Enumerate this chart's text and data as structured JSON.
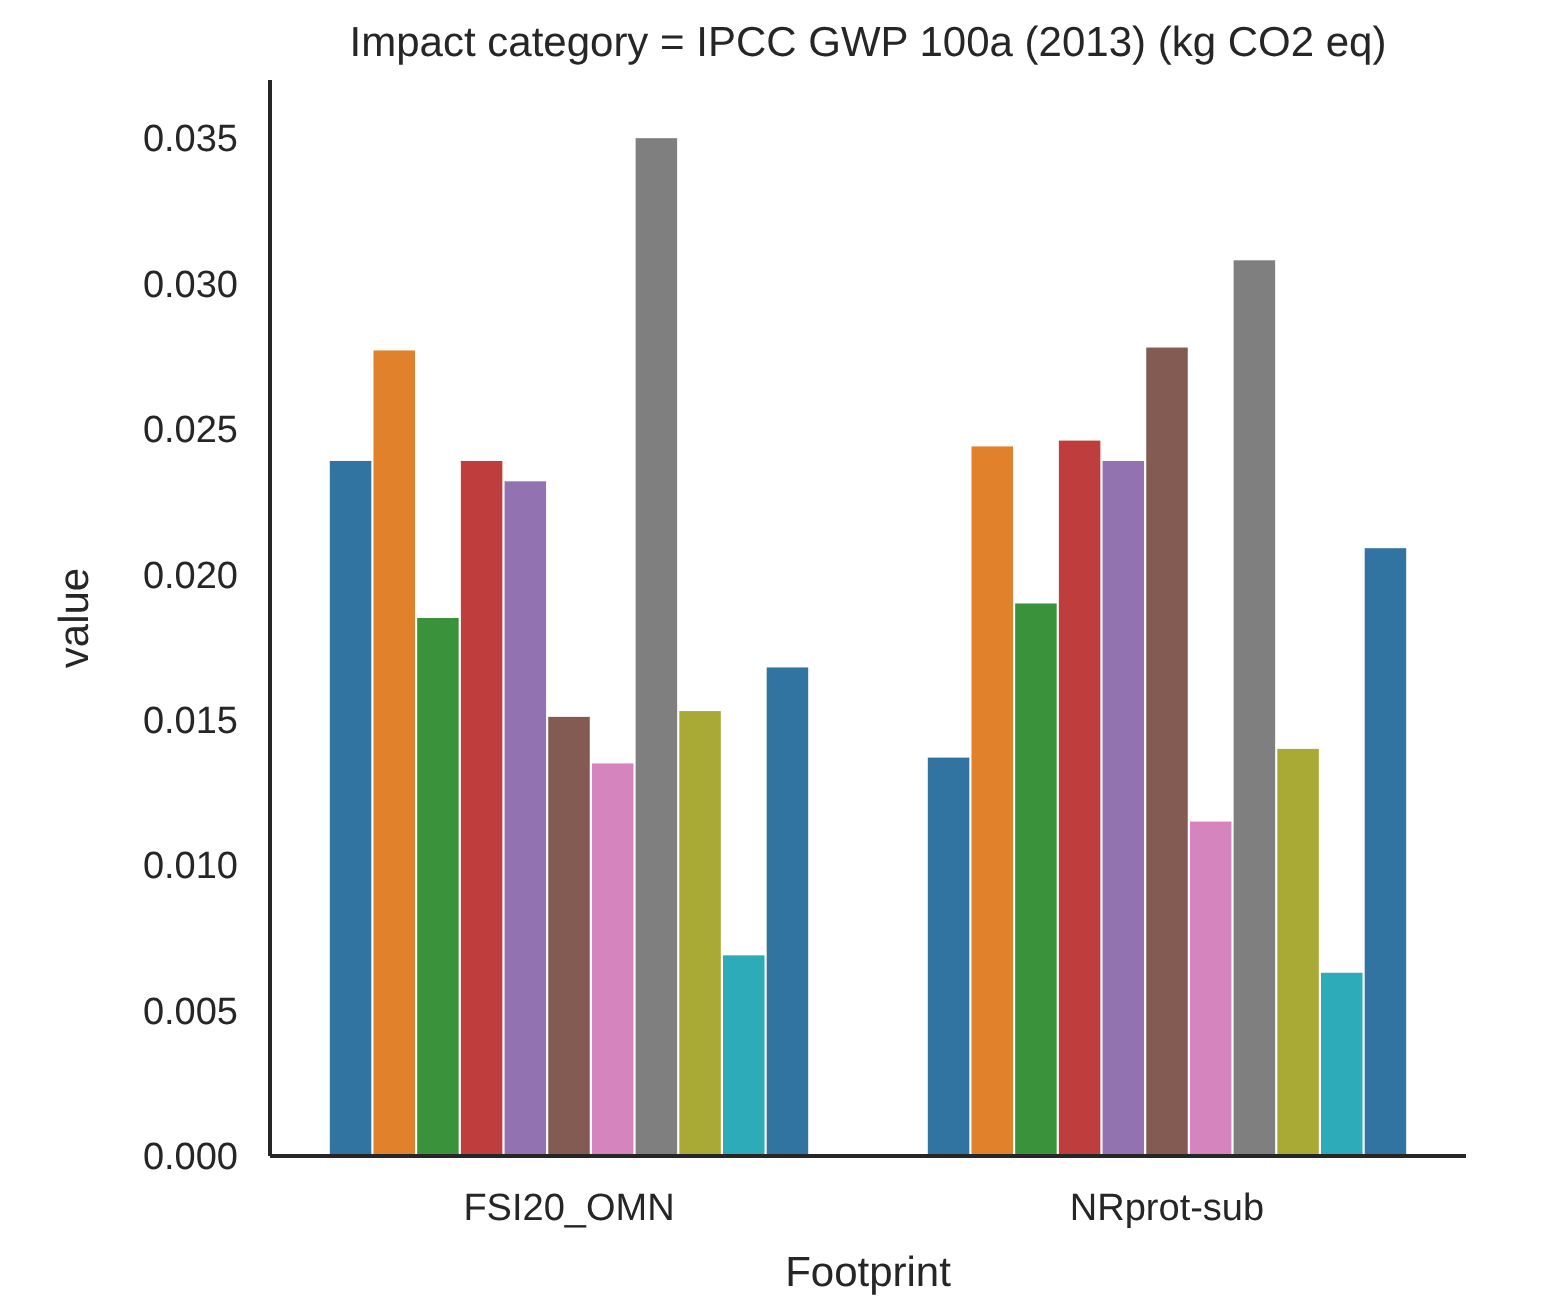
{
  "chart_data": {
    "type": "bar",
    "title": "Impact category = IPCC GWP 100a (2013) (kg CO2 eq)",
    "xlabel": "Footprint",
    "ylabel": "value",
    "categories": [
      "FSI20_OMN",
      "NRprot-sub"
    ],
    "ylim": [
      0,
      0.037
    ],
    "yticks": [
      {
        "value": 0,
        "label": "0.000"
      },
      {
        "value": 0.005,
        "label": "0.005"
      },
      {
        "value": 0.01,
        "label": "0.010"
      },
      {
        "value": 0.015,
        "label": "0.015"
      },
      {
        "value": 0.02,
        "label": "0.020"
      },
      {
        "value": 0.025,
        "label": "0.025"
      },
      {
        "value": 0.03,
        "label": "0.030"
      },
      {
        "value": 0.035,
        "label": "0.035"
      }
    ],
    "grid": false,
    "series": [
      {
        "color": "#3274a1",
        "values": [
          0.0239,
          0.0137
        ]
      },
      {
        "color": "#e1812c",
        "values": [
          0.0277,
          0.0244
        ]
      },
      {
        "color": "#3a923a",
        "values": [
          0.0185,
          0.019
        ]
      },
      {
        "color": "#c03d3e",
        "values": [
          0.0239,
          0.0246
        ]
      },
      {
        "color": "#9372b2",
        "values": [
          0.0232,
          0.0239
        ]
      },
      {
        "color": "#845b53",
        "values": [
          0.0151,
          0.0278
        ]
      },
      {
        "color": "#d684bd",
        "values": [
          0.0135,
          0.0115
        ]
      },
      {
        "color": "#7f7f7f",
        "values": [
          0.035,
          0.0308
        ]
      },
      {
        "color": "#a9aa35",
        "values": [
          0.0153,
          0.014
        ]
      },
      {
        "color": "#2eabb8",
        "values": [
          0.0069,
          0.0063
        ]
      },
      {
        "color": "#3274a1",
        "values": [
          0.0168,
          0.0209
        ]
      }
    ]
  }
}
